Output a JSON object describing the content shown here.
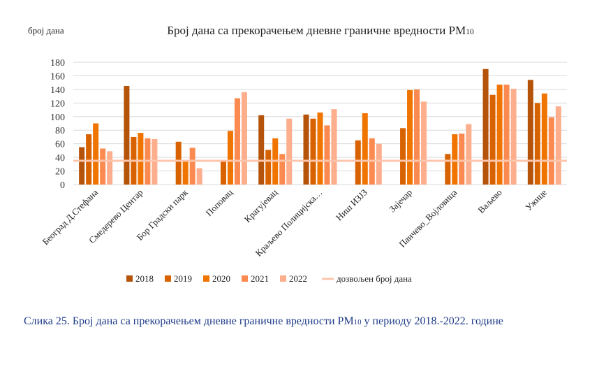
{
  "chart_data": {
    "type": "bar",
    "title": "Број дана са прекорачењем дневне граничне вредности PM",
    "title_subscript": "10",
    "ylabel": "број дана",
    "xlabel": "",
    "ylim": [
      0,
      180
    ],
    "yticks": [
      0,
      20,
      40,
      60,
      80,
      100,
      120,
      140,
      160,
      180
    ],
    "grid": true,
    "legend_position": "bottom",
    "categories": [
      "Београд  Д.Стефана",
      "Смедерево Центар",
      "Бор Градски парк",
      "Поповац",
      "Крагујевац",
      "Краљево Полицијска…",
      "Ниш ИЗЈЗ",
      "Зајечар",
      "Панчево_Војловица",
      "Ваљево",
      "Ужице"
    ],
    "series": [
      {
        "name": "2018",
        "color": "#b45309",
        "values": [
          55,
          145,
          null,
          null,
          102,
          103,
          null,
          null,
          null,
          170,
          154
        ]
      },
      {
        "name": "2019",
        "color": "#d96200",
        "values": [
          74,
          70,
          63,
          35,
          51,
          97,
          65,
          83,
          45,
          132,
          120
        ]
      },
      {
        "name": "2020",
        "color": "#f07400",
        "values": [
          90,
          76,
          35,
          79,
          68,
          106,
          105,
          139,
          74,
          147,
          134
        ]
      },
      {
        "name": "2021",
        "color": "#fb8a50",
        "values": [
          53,
          68,
          54,
          127,
          45,
          87,
          68,
          140,
          75,
          147,
          99
        ]
      },
      {
        "name": "2022",
        "color": "#fdae8c",
        "values": [
          49,
          67,
          24,
          136,
          97,
          111,
          60,
          122,
          89,
          141,
          115
        ]
      }
    ],
    "reference_line": {
      "name": "дозвољен број дана",
      "value": 35,
      "color": "#fcc5ac"
    }
  },
  "caption": {
    "prefix": "Слика 25. Број дана са прекорачењем дневне граничне вредности PM",
    "subscript": "10",
    "suffix": " у периоду 2018.-2022. године"
  }
}
